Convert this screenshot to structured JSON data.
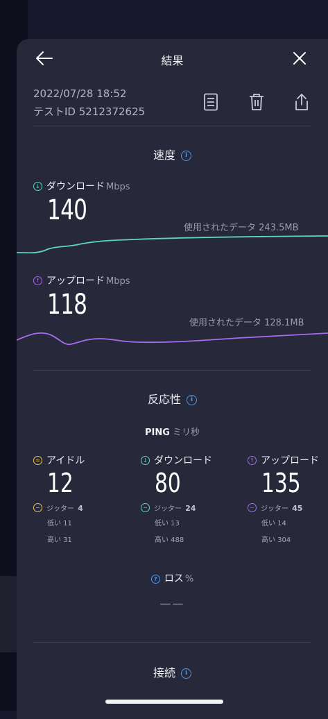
{
  "header": {
    "title": "結果"
  },
  "meta": {
    "datetime": "2022/07/28 18:52",
    "test_id": "テストID 5212372625"
  },
  "speed": {
    "title": "速度",
    "download": {
      "label": "ダウンロード",
      "unit": "Mbps",
      "value": "140",
      "used": "使用されたデータ 243.5MB"
    },
    "upload": {
      "label": "アップロード",
      "unit": "Mbps",
      "value": "118",
      "used": "使用されたデータ 128.1MB"
    }
  },
  "responsiveness": {
    "title": "反応性",
    "ping_label": "PING",
    "ping_unit": "ミリ秒",
    "columns": [
      {
        "label": "アイドル",
        "value": "12",
        "jitter_label": "ジッター",
        "jitter": "4",
        "low": "低い 11",
        "high": "高い 31"
      },
      {
        "label": "ダウンロード",
        "value": "80",
        "jitter_label": "ジッター",
        "jitter": "24",
        "low": "低い 13",
        "high": "高い 488"
      },
      {
        "label": "アップロード",
        "value": "135",
        "jitter_label": "ジッター",
        "jitter": "45",
        "low": "低い 14",
        "high": "高い 304"
      }
    ],
    "loss_label": "ロス",
    "loss_unit": "%",
    "loss_value": "——"
  },
  "connection": {
    "title": "接続"
  },
  "colors": {
    "download": "#5fd3c4",
    "upload": "#a56cf0",
    "idle": "#e8c35a",
    "info": "#4b9bf0"
  },
  "icons": [
    "back-arrow-icon",
    "close-icon",
    "document-icon",
    "trash-icon",
    "share-icon",
    "info-icon",
    "download-icon",
    "upload-icon",
    "idle-icon",
    "jitter-icon",
    "help-icon"
  ]
}
